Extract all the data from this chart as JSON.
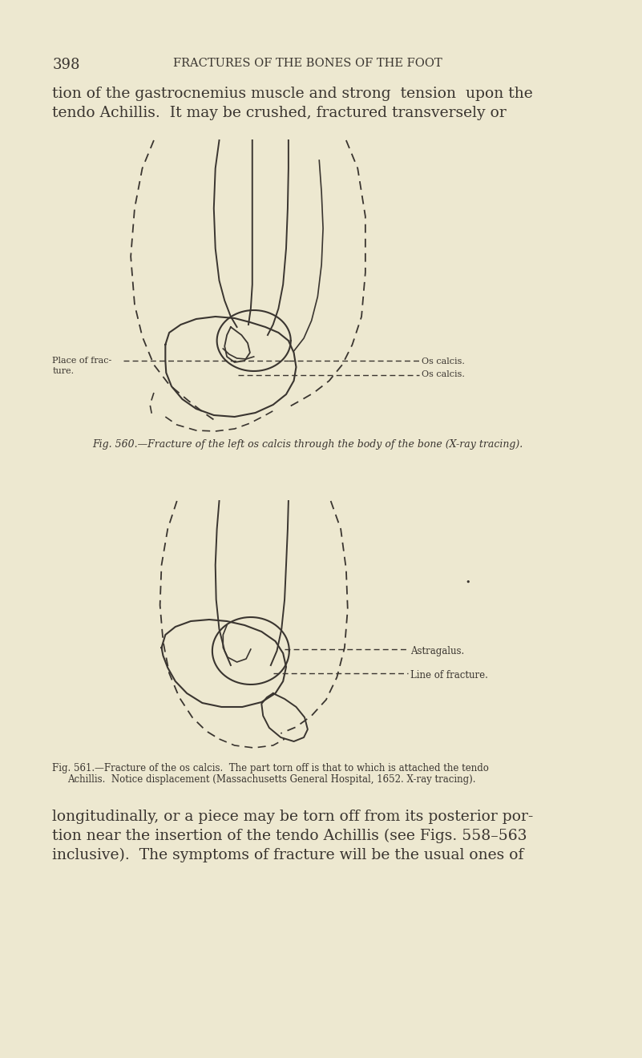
{
  "bg_color": "#EDE8D0",
  "text_color": "#3a3530",
  "page_number": "398",
  "header_title": "FRACTURES OF THE BONES OF THE FOOT",
  "top_text_line1": "tion of the gastrocnemius muscle and strong  tension  upon the",
  "top_text_line2": "tendo Achillis.  It may be crushed, fractured transversely or",
  "fig1_caption": "Fig. 560.—Fracture of the left os calcis through the body of the bone (X-ray tracing).",
  "fig1_label_left1": "Place of frac-",
  "fig1_label_left2": "ture.",
  "fig1_label_right1": "Os calcis.",
  "fig1_label_right2": "Os calcis.",
  "fig2_label_astragalus": "Astragalus.",
  "fig2_label_fracture": "Line of fracture.",
  "fig2_caption_line1": "Fig. 561.—Fracture of the os calcis.  The part torn off is that to which is attached the tendo",
  "fig2_caption_line2": "Achillis.  Notice displacement (Massachusetts General Hospital, 1652. X-ray tracing).",
  "bottom_text_line1": "longitudinally, or a piece may be torn off from its posterior por-",
  "bottom_text_line2": "tion near the insertion of the tendo Achillis (see Figs. 558–563",
  "bottom_text_line3": "inclusive).  The symptoms of fracture will be the usual ones of"
}
